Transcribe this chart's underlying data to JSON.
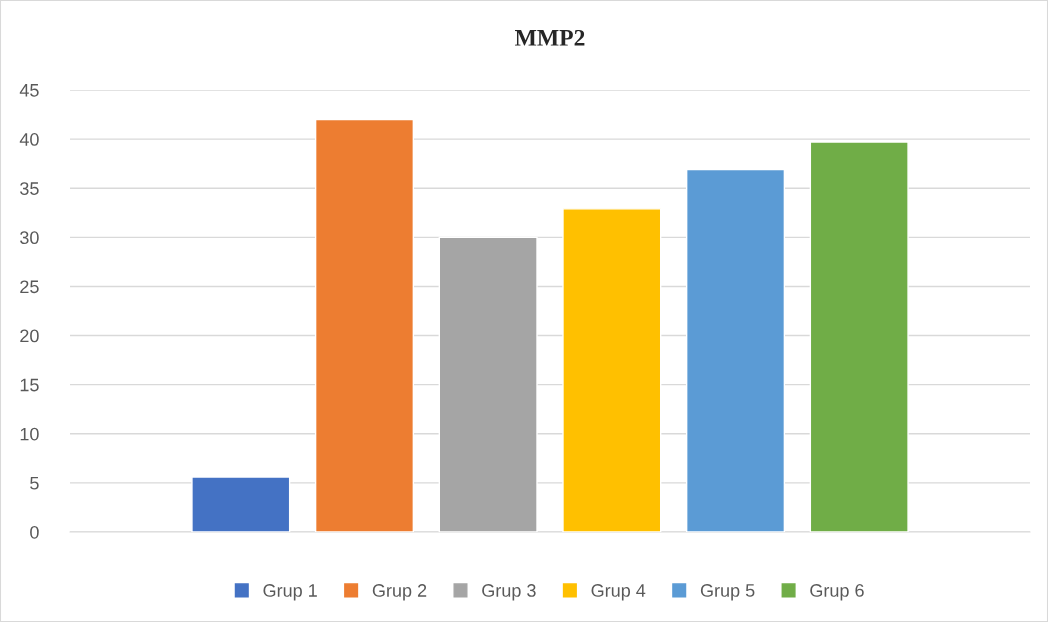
{
  "chart_data": {
    "type": "bar",
    "title": "MMP2",
    "categories": [
      null
    ],
    "series": [
      {
        "name": "Grup 1",
        "color": "#4472c4",
        "values": [
          5.6
        ]
      },
      {
        "name": "Grup 2",
        "color": "#ed7d31",
        "values": [
          42
        ]
      },
      {
        "name": "Grup 3",
        "color": "#a5a5a5",
        "values": [
          30
        ]
      },
      {
        "name": "Grup 4",
        "color": "#ffc000",
        "values": [
          32.9
        ]
      },
      {
        "name": "Grup 5",
        "color": "#5b9bd5",
        "values": [
          36.9
        ]
      },
      {
        "name": "Grup 6",
        "color": "#70ad47",
        "values": [
          39.7
        ]
      }
    ],
    "ylim": [
      0,
      45
    ],
    "yticks": [
      0,
      5,
      10,
      15,
      20,
      25,
      30,
      35,
      40,
      45
    ],
    "grid": "y",
    "legend": "bottom"
  }
}
